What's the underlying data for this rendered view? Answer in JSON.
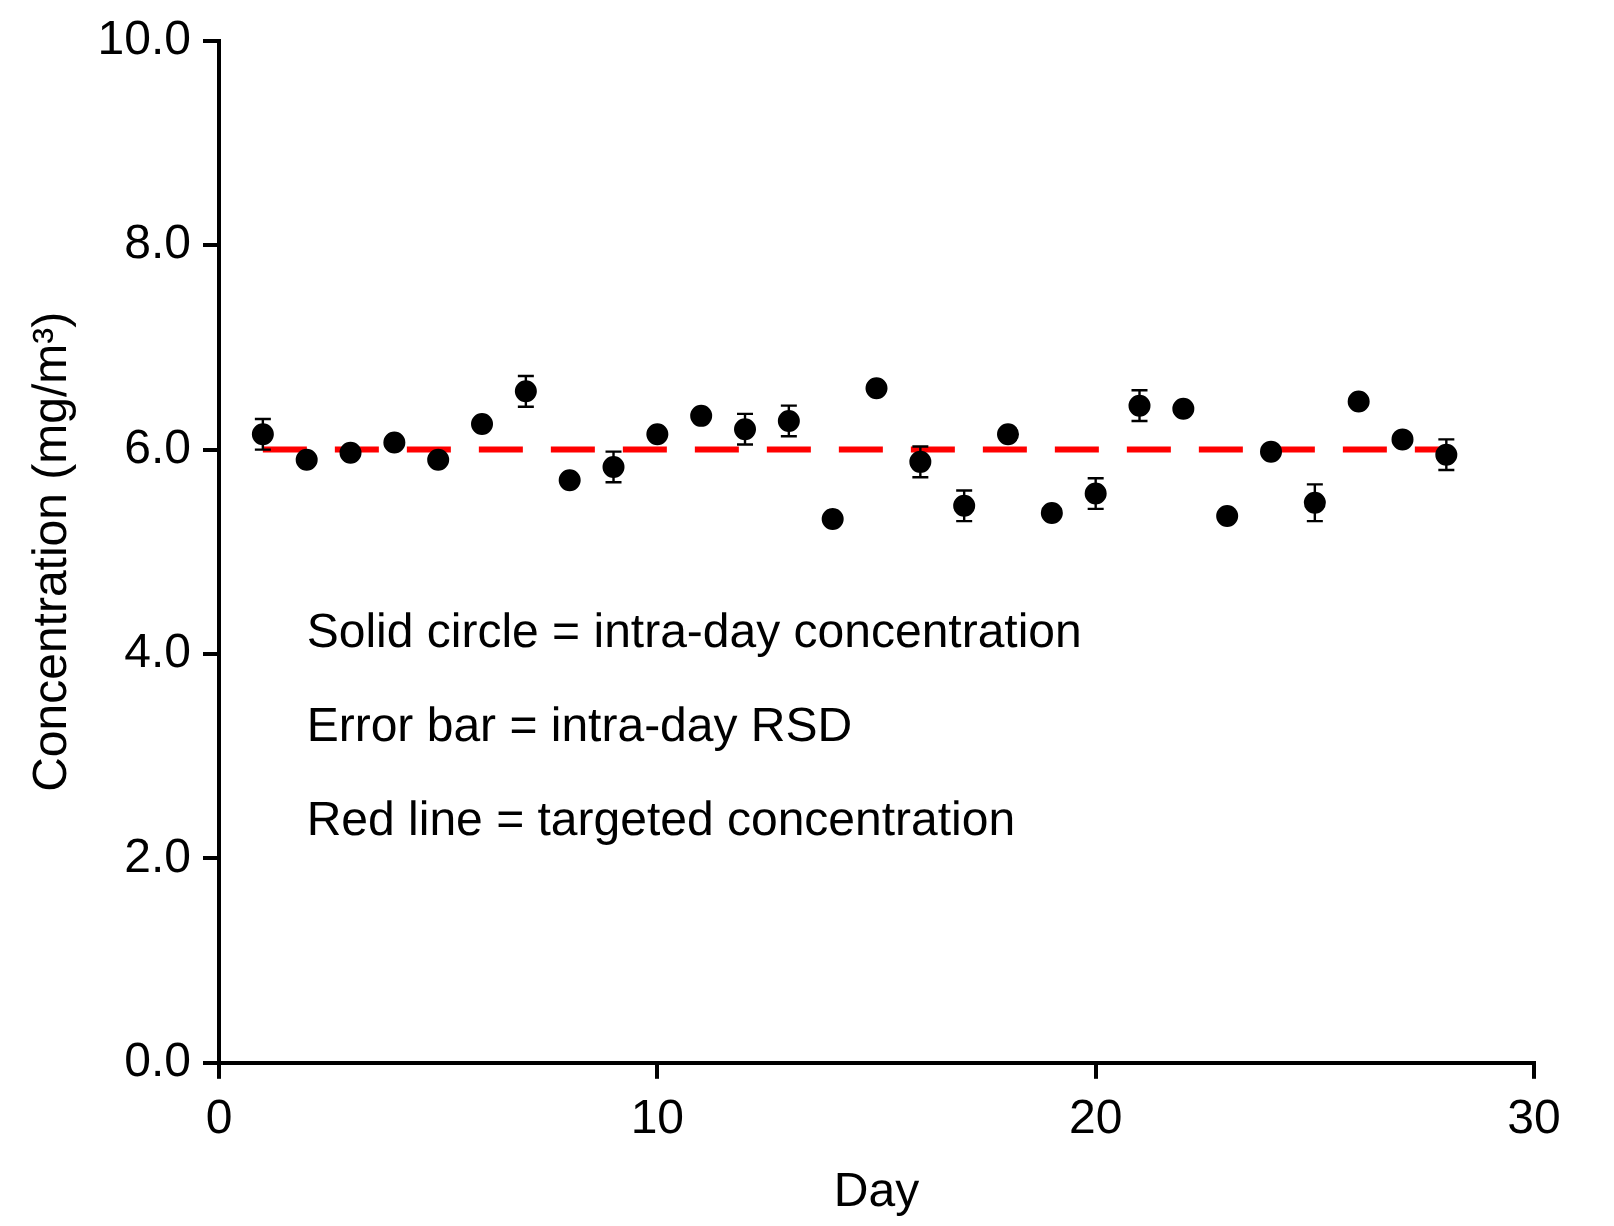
{
  "chart_data": {
    "type": "scatter",
    "xlabel": "Day",
    "ylabel": "Concentration (mg/m³)",
    "x": [
      1,
      2,
      3,
      4,
      5,
      6,
      7,
      8,
      9,
      10,
      11,
      12,
      13,
      14,
      15,
      16,
      17,
      18,
      19,
      20,
      21,
      22,
      23,
      24,
      25,
      26,
      27,
      28
    ],
    "series": [
      {
        "color": "#000000",
        "values": [
          6.15,
          5.9,
          5.97,
          6.07,
          5.9,
          6.25,
          6.57,
          5.7,
          5.83,
          6.15,
          6.33,
          6.2,
          6.28,
          5.32,
          6.6,
          5.88,
          5.45,
          6.15,
          5.38,
          5.57,
          6.43,
          6.4,
          5.35,
          5.98,
          5.48,
          6.47,
          6.1,
          5.95
        ],
        "errors": [
          0.15,
          null,
          null,
          null,
          null,
          null,
          0.15,
          null,
          0.15,
          null,
          null,
          0.15,
          0.15,
          null,
          null,
          0.15,
          0.15,
          null,
          null,
          0.15,
          0.15,
          null,
          null,
          null,
          0.18,
          null,
          null,
          0.15
        ]
      }
    ],
    "marker": "circle",
    "xlim": [
      0,
      30
    ],
    "xticks": [
      0,
      10,
      20,
      30
    ],
    "ylim": [
      0,
      10
    ],
    "yticks": [
      {
        "value": 0,
        "label": "0.0"
      },
      {
        "value": 2,
        "label": "2.0"
      },
      {
        "value": 4,
        "label": "4.0"
      },
      {
        "value": 6,
        "label": "6.0"
      },
      {
        "value": 8,
        "label": "8.0"
      },
      {
        "value": 10,
        "label": "10.0"
      }
    ],
    "ref_lines": [
      {
        "axis": "y",
        "value": 6,
        "color": "#ff0000",
        "line_style": "dashed"
      }
    ],
    "annotations": [
      "Solid circle = intra-day concentration",
      "Error bar = intra-day RSD",
      "Red line = targeted concentration"
    ],
    "grid": false,
    "legend": false
  }
}
